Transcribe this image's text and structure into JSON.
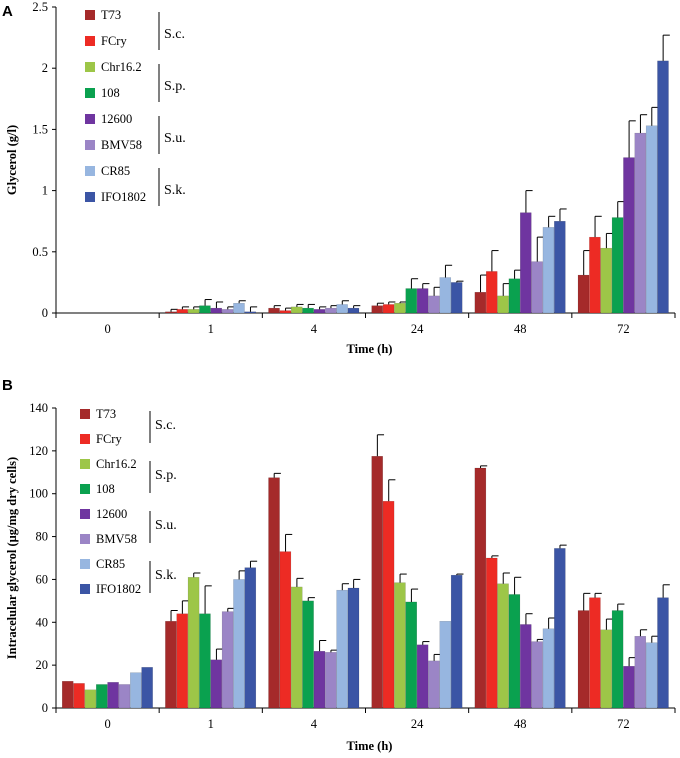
{
  "series_colors": [
    "#a52a2a",
    "#ed2b24",
    "#9dc648",
    "#0aa14f",
    "#6f35a0",
    "#9b85c6",
    "#97b6e0",
    "#3b55a5"
  ],
  "legend": {
    "series": [
      "T73",
      "FCry",
      "Chr16.2",
      "108",
      "12600",
      "BMV58",
      "CR85",
      "IFO1802"
    ],
    "groups": [
      "S.c.",
      "S.p.",
      "S.u.",
      "S.k."
    ]
  },
  "chart_data": [
    {
      "type": "bar",
      "panel": "A",
      "title": "",
      "xlabel": "Time (h)",
      "ylabel": "Glycerol (g/l)",
      "ylim": [
        0,
        2.5
      ],
      "yticks": [
        "0",
        "0.5",
        "1",
        "1.5",
        "2",
        "2.5"
      ],
      "categories": [
        "0",
        "1",
        "4",
        "24",
        "48",
        "72"
      ],
      "series": [
        {
          "name": "T73",
          "values": [
            0,
            0.01,
            0.04,
            0.06,
            0.17,
            0.31
          ],
          "errors": [
            0,
            0.02,
            0.02,
            0.02,
            0.14,
            0.2
          ]
        },
        {
          "name": "FCry",
          "values": [
            0,
            0.03,
            0.02,
            0.07,
            0.34,
            0.62
          ],
          "errors": [
            0,
            0.02,
            0.02,
            0.02,
            0.17,
            0.17
          ]
        },
        {
          "name": "Chr16.2",
          "values": [
            0,
            0.03,
            0.05,
            0.08,
            0.14,
            0.53
          ],
          "errors": [
            0,
            0.02,
            0.02,
            0.01,
            0.1,
            0.12
          ]
        },
        {
          "name": "108",
          "values": [
            0,
            0.06,
            0.04,
            0.2,
            0.28,
            0.78
          ],
          "errors": [
            0,
            0.05,
            0.03,
            0.08,
            0.07,
            0.13
          ]
        },
        {
          "name": "12600",
          "values": [
            0,
            0.04,
            0.03,
            0.2,
            0.82,
            1.27
          ],
          "errors": [
            0,
            0.05,
            0.02,
            0.04,
            0.18,
            0.3
          ]
        },
        {
          "name": "BMV58",
          "values": [
            0,
            0.03,
            0.04,
            0.14,
            0.42,
            1.47
          ],
          "errors": [
            0,
            0.02,
            0.02,
            0.07,
            0.2,
            0.15
          ]
        },
        {
          "name": "CR85",
          "values": [
            0,
            0.08,
            0.07,
            0.29,
            0.7,
            1.53
          ],
          "errors": [
            0,
            0.02,
            0.03,
            0.1,
            0.09,
            0.15
          ]
        },
        {
          "name": "IFO1802",
          "values": [
            0,
            0.01,
            0.04,
            0.25,
            0.75,
            2.06
          ],
          "errors": [
            0,
            0.04,
            0.02,
            0.01,
            0.1,
            0.21
          ]
        }
      ]
    },
    {
      "type": "bar",
      "panel": "B",
      "title": "",
      "xlabel": "Time (h)",
      "ylabel": "Intracelular glycerol (μg/mg dry cells)",
      "ylim": [
        0,
        140
      ],
      "yticks": [
        "0",
        "20",
        "40",
        "60",
        "80",
        "100",
        "120",
        "140"
      ],
      "categories": [
        "0",
        "1",
        "4",
        "24",
        "48",
        "72"
      ],
      "series": [
        {
          "name": "T73",
          "values": [
            12.5,
            40.5,
            107.5,
            117.5,
            112,
            45.5
          ],
          "errors": [
            0,
            5,
            2,
            10,
            1,
            8
          ]
        },
        {
          "name": "FCry",
          "values": [
            11.5,
            44,
            73,
            96.5,
            70,
            51.5
          ],
          "errors": [
            0,
            6,
            8,
            10,
            1,
            2
          ]
        },
        {
          "name": "Chr16.2",
          "values": [
            8.5,
            61,
            56.5,
            58.5,
            58,
            36.5
          ],
          "errors": [
            0,
            2,
            4,
            4,
            5,
            5
          ]
        },
        {
          "name": "108",
          "values": [
            11,
            44,
            50,
            49.5,
            53,
            45.5
          ],
          "errors": [
            0,
            13,
            1.5,
            6,
            8,
            3
          ]
        },
        {
          "name": "12600",
          "values": [
            12,
            22.5,
            26.5,
            29.5,
            39,
            19.5
          ],
          "errors": [
            0,
            5,
            5,
            1.5,
            5,
            4
          ]
        },
        {
          "name": "BMV58",
          "values": [
            11,
            45,
            26,
            22,
            31,
            33.5
          ],
          "errors": [
            0,
            1.5,
            1,
            3,
            1,
            3
          ]
        },
        {
          "name": "CR85",
          "values": [
            16.5,
            60,
            55,
            40.5,
            37,
            30.5
          ],
          "errors": [
            0,
            4,
            3,
            0,
            5,
            3
          ]
        },
        {
          "name": "IFO1802",
          "values": [
            19,
            65.5,
            56,
            62,
            74.5,
            51.5
          ],
          "errors": [
            0,
            3,
            4,
            0.5,
            1.5,
            6
          ]
        }
      ]
    }
  ]
}
